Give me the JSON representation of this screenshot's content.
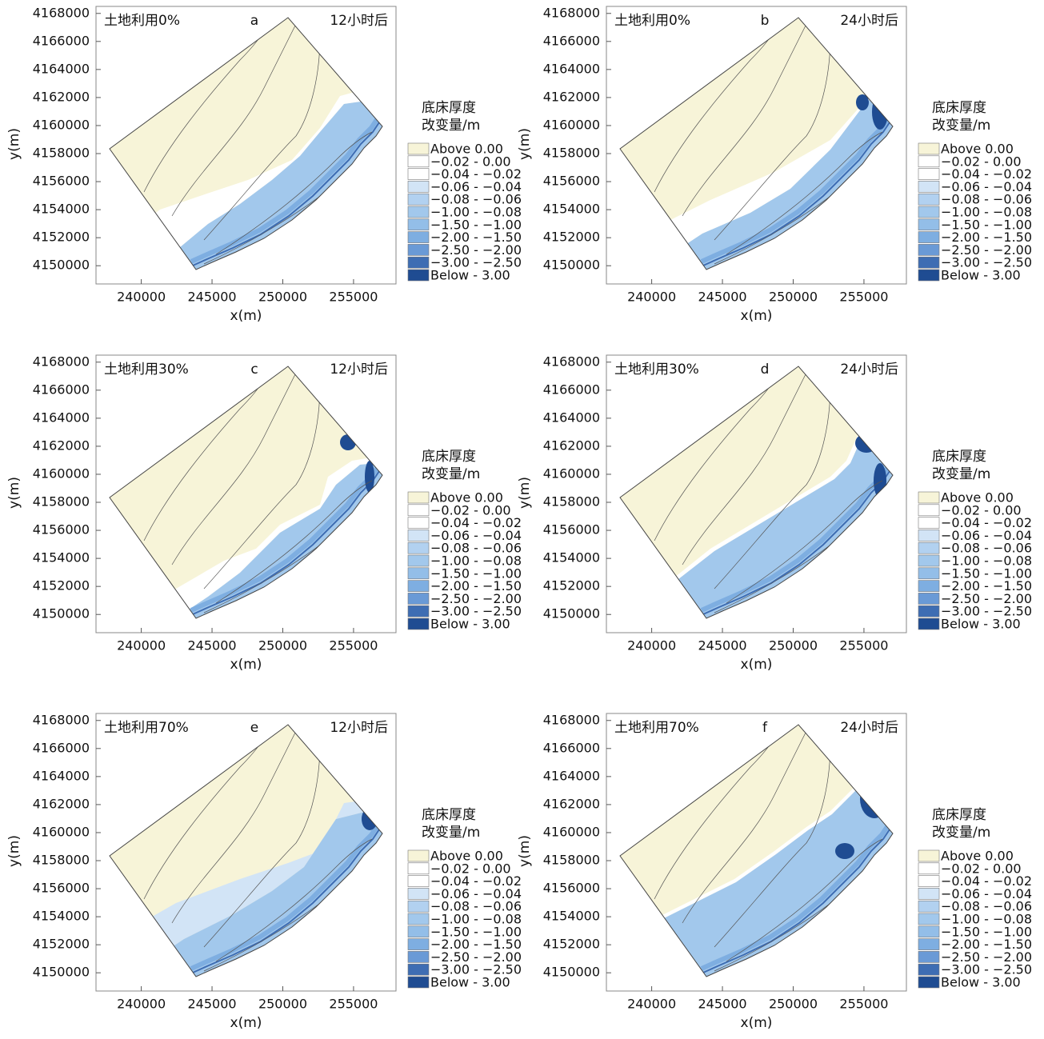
{
  "chart_data": [
    {
      "type": "contour-map",
      "label": "土地利用0%",
      "panel": "a",
      "time": "12小时后",
      "xlabel": "x(m)",
      "ylabel": "y(m)",
      "xlim": [
        236800,
        258000
      ],
      "ylim": [
        4148700,
        4168500
      ],
      "xticks": [
        240000,
        245000,
        250000,
        255000
      ],
      "yticks": [
        4150000,
        4152000,
        4154000,
        4156000,
        4158000,
        4160000,
        4162000,
        4164000,
        4166000,
        4168000
      ],
      "legend_title": [
        "底床厚度",
        "改变量/m"
      ],
      "legend": [
        {
          "name": "Above 0.00",
          "color": "#f7f4d8"
        },
        {
          "name": "−0.02 - 0.00",
          "color": "#ffffff"
        },
        {
          "name": "−0.04 - −0.02",
          "color": "#ffffff"
        },
        {
          "name": "−0.06 - −0.04",
          "color": "#d2e4f6"
        },
        {
          "name": "−0.08 - −0.06",
          "color": "#b2d1f0"
        },
        {
          "name": "−1.00 - −0.08",
          "color": "#a2c8ec"
        },
        {
          "name": "−1.50 - −1.00",
          "color": "#93bee8"
        },
        {
          "name": "−2.00 - −1.50",
          "color": "#7eaee1"
        },
        {
          "name": "−2.50 - −2.00",
          "color": "#6a9ad6"
        },
        {
          "name": "−3.00 - −2.50",
          "color": "#3e6db3"
        },
        {
          "name": "Below - 3.00",
          "color": "#1f4c92"
        }
      ]
    },
    {
      "type": "contour-map",
      "label": "土地利用0%",
      "panel": "b",
      "time": "24小时后",
      "xlabel": "x(m)",
      "ylabel": "y(m)",
      "xlim": [
        236800,
        258000
      ],
      "ylim": [
        4148700,
        4168500
      ],
      "xticks": [
        240000,
        245000,
        250000,
        255000
      ],
      "yticks": [
        4150000,
        4152000,
        4154000,
        4156000,
        4158000,
        4160000,
        4162000,
        4164000,
        4166000,
        4168000
      ],
      "legend_title": [
        "底床厚度",
        "改变量/m"
      ],
      "legend": [
        {
          "name": "Above 0.00",
          "color": "#f7f4d8"
        },
        {
          "name": "−0.02 - 0.00",
          "color": "#ffffff"
        },
        {
          "name": "−0.04 - −0.02",
          "color": "#ffffff"
        },
        {
          "name": "−0.06 - −0.04",
          "color": "#d2e4f6"
        },
        {
          "name": "−0.08 - −0.06",
          "color": "#b2d1f0"
        },
        {
          "name": "−1.00 - −0.08",
          "color": "#a2c8ec"
        },
        {
          "name": "−1.50 - −1.00",
          "color": "#93bee8"
        },
        {
          "name": "−2.00 - −1.50",
          "color": "#7eaee1"
        },
        {
          "name": "−2.50 - −2.00",
          "color": "#6a9ad6"
        },
        {
          "name": "−3.00 - −2.50",
          "color": "#3e6db3"
        },
        {
          "name": "Below - 3.00",
          "color": "#1f4c92"
        }
      ]
    },
    {
      "type": "contour-map",
      "label": "土地利用30%",
      "panel": "c",
      "time": "12小时后",
      "xlabel": "x(m)",
      "ylabel": "y(m)",
      "xlim": [
        236800,
        258000
      ],
      "ylim": [
        4148700,
        4168500
      ],
      "xticks": [
        240000,
        245000,
        250000,
        255000
      ],
      "yticks": [
        4150000,
        4152000,
        4154000,
        4156000,
        4158000,
        4160000,
        4162000,
        4164000,
        4166000,
        4168000
      ],
      "legend_title": [
        "底床厚度",
        "改变量/m"
      ],
      "legend": [
        {
          "name": "Above 0.00",
          "color": "#f7f4d8"
        },
        {
          "name": "−0.02 - 0.00",
          "color": "#ffffff"
        },
        {
          "name": "−0.04 - −0.02",
          "color": "#ffffff"
        },
        {
          "name": "−0.06 - −0.04",
          "color": "#d2e4f6"
        },
        {
          "name": "−0.08 - −0.06",
          "color": "#b2d1f0"
        },
        {
          "name": "−1.00 - −0.08",
          "color": "#a2c8ec"
        },
        {
          "name": "−1.50 - −1.00",
          "color": "#93bee8"
        },
        {
          "name": "−2.00 - −1.50",
          "color": "#7eaee1"
        },
        {
          "name": "−2.50 - −2.00",
          "color": "#6a9ad6"
        },
        {
          "name": "−3.00 - −2.50",
          "color": "#3e6db3"
        },
        {
          "name": "Below - 3.00",
          "color": "#1f4c92"
        }
      ]
    },
    {
      "type": "contour-map",
      "label": "土地利用30%",
      "panel": "d",
      "time": "24小时后",
      "xlabel": "x(m)",
      "ylabel": "y(m)",
      "xlim": [
        236800,
        258000
      ],
      "ylim": [
        4148700,
        4168500
      ],
      "xticks": [
        240000,
        245000,
        250000,
        255000
      ],
      "yticks": [
        4150000,
        4152000,
        4154000,
        4156000,
        4158000,
        4160000,
        4162000,
        4164000,
        4166000,
        4168000
      ],
      "legend_title": [
        "底床厚度",
        "改变量/m"
      ],
      "legend": [
        {
          "name": "Above 0.00",
          "color": "#f7f4d8"
        },
        {
          "name": "−0.02 - 0.00",
          "color": "#ffffff"
        },
        {
          "name": "−0.04 - −0.02",
          "color": "#ffffff"
        },
        {
          "name": "−0.06 - −0.04",
          "color": "#d2e4f6"
        },
        {
          "name": "−0.08 - −0.06",
          "color": "#b2d1f0"
        },
        {
          "name": "−1.00 - −0.08",
          "color": "#a2c8ec"
        },
        {
          "name": "−1.50 - −1.00",
          "color": "#93bee8"
        },
        {
          "name": "−2.00 - −1.50",
          "color": "#7eaee1"
        },
        {
          "name": "−2.50 - −2.00",
          "color": "#6a9ad6"
        },
        {
          "name": "−3.00 - −2.50",
          "color": "#3e6db3"
        },
        {
          "name": "Below - 3.00",
          "color": "#1f4c92"
        }
      ]
    },
    {
      "type": "contour-map",
      "label": "土地利用70%",
      "panel": "e",
      "time": "12小时后",
      "xlabel": "x(m)",
      "ylabel": "y(m)",
      "xlim": [
        236800,
        258000
      ],
      "ylim": [
        4148700,
        4168500
      ],
      "xticks": [
        240000,
        245000,
        250000,
        255000
      ],
      "yticks": [
        4150000,
        4152000,
        4154000,
        4156000,
        4158000,
        4160000,
        4162000,
        4164000,
        4166000,
        4168000
      ],
      "legend_title": [
        "底床厚度",
        "改变量/m"
      ],
      "legend": [
        {
          "name": "Above 0.00",
          "color": "#f7f4d8"
        },
        {
          "name": "−0.02 - 0.00",
          "color": "#ffffff"
        },
        {
          "name": "−0.04 - −0.02",
          "color": "#ffffff"
        },
        {
          "name": "−0.06 - −0.04",
          "color": "#d2e4f6"
        },
        {
          "name": "−0.08 - −0.06",
          "color": "#b2d1f0"
        },
        {
          "name": "−1.00 - −0.08",
          "color": "#a2c8ec"
        },
        {
          "name": "−1.50 - −1.00",
          "color": "#93bee8"
        },
        {
          "name": "−2.00 - −1.50",
          "color": "#7eaee1"
        },
        {
          "name": "−2.50 - −2.00",
          "color": "#6a9ad6"
        },
        {
          "name": "−3.00 - −2.50",
          "color": "#3e6db3"
        },
        {
          "name": "Below - 3.00",
          "color": "#1f4c92"
        }
      ]
    },
    {
      "type": "contour-map",
      "label": "土地利用70%",
      "panel": "f",
      "time": "24小时后",
      "xlabel": "x(m)",
      "ylabel": "y(m)",
      "xlim": [
        236800,
        258000
      ],
      "ylim": [
        4148700,
        4168500
      ],
      "xticks": [
        240000,
        245000,
        250000,
        255000
      ],
      "yticks": [
        4150000,
        4152000,
        4154000,
        4156000,
        4158000,
        4160000,
        4162000,
        4164000,
        4166000,
        4168000
      ],
      "legend_title": [
        "底床厚度",
        "改变量/m"
      ],
      "legend": [
        {
          "name": "Above 0.00",
          "color": "#f7f4d8"
        },
        {
          "name": "−0.02 - 0.00",
          "color": "#ffffff"
        },
        {
          "name": "−0.04 - −0.02",
          "color": "#ffffff"
        },
        {
          "name": "−0.06 - −0.04",
          "color": "#d2e4f6"
        },
        {
          "name": "−0.08 - −0.06",
          "color": "#b2d1f0"
        },
        {
          "name": "−1.00 - −0.08",
          "color": "#a2c8ec"
        },
        {
          "name": "−1.50 - −1.00",
          "color": "#93bee8"
        },
        {
          "name": "−2.00 - −1.50",
          "color": "#7eaee1"
        },
        {
          "name": "−2.50 - −2.00",
          "color": "#6a9ad6"
        },
        {
          "name": "−3.00 - −2.50",
          "color": "#3e6db3"
        },
        {
          "name": "Below - 3.00",
          "color": "#1f4c92"
        }
      ]
    }
  ]
}
